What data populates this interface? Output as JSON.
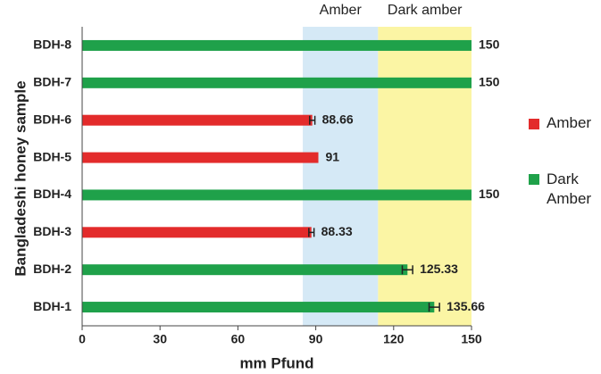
{
  "chart_data": {
    "type": "bar",
    "orientation": "horizontal",
    "title_bands": null,
    "x_label": "mm Pfund",
    "y_label": "Bangladeshi honey sample",
    "categories": [
      "BDH-1",
      "BDH-2",
      "BDH-3",
      "BDH-4",
      "BDH-5",
      "BDH-6",
      "BDH-7",
      "BDH-8"
    ],
    "series": [
      {
        "name": "Amber",
        "color": "#e32b2b",
        "values": [
          null,
          null,
          88.33,
          null,
          91,
          88.66,
          null,
          null
        ],
        "errors": [
          null,
          null,
          1,
          null,
          null,
          1,
          null,
          null
        ]
      },
      {
        "name": "Dark Amber",
        "color": "#1fa14a",
        "values": [
          135.66,
          125.33,
          null,
          150,
          null,
          null,
          150,
          150
        ],
        "errors": [
          2,
          2,
          null,
          null,
          null,
          null,
          null,
          null
        ]
      }
    ],
    "bands": [
      {
        "label": "Amber",
        "range": [
          85,
          114
        ],
        "color": "#d5e9f6"
      },
      {
        "label": "Dark amber",
        "range": [
          114,
          150
        ],
        "color": "#fbf5a4"
      }
    ],
    "xlim": [
      0,
      150
    ],
    "xticks": [
      0,
      30,
      60,
      90,
      120,
      150
    ],
    "legend": "right"
  }
}
